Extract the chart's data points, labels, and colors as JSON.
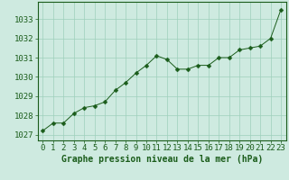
{
  "x": [
    0,
    1,
    2,
    3,
    4,
    5,
    6,
    7,
    8,
    9,
    10,
    11,
    12,
    13,
    14,
    15,
    16,
    17,
    18,
    19,
    20,
    21,
    22,
    23
  ],
  "y": [
    1027.2,
    1027.6,
    1027.6,
    1028.1,
    1028.4,
    1028.5,
    1028.7,
    1029.3,
    1029.7,
    1030.2,
    1030.6,
    1031.1,
    1030.9,
    1030.4,
    1030.4,
    1030.6,
    1030.6,
    1031.0,
    1031.0,
    1031.4,
    1031.5,
    1031.6,
    1032.0,
    1033.5
  ],
  "line_color": "#1a5c1a",
  "marker": "D",
  "marker_size": 2.5,
  "background_color": "#ceeae0",
  "grid_color": "#9ecfbb",
  "ylabel_ticks": [
    1027,
    1028,
    1029,
    1030,
    1031,
    1032,
    1033
  ],
  "xlabel": "Graphe pression niveau de la mer (hPa)",
  "xlabel_fontsize": 7,
  "tick_fontsize": 6.5,
  "ylim": [
    1026.7,
    1033.9
  ],
  "xlim": [
    -0.5,
    23.5
  ]
}
